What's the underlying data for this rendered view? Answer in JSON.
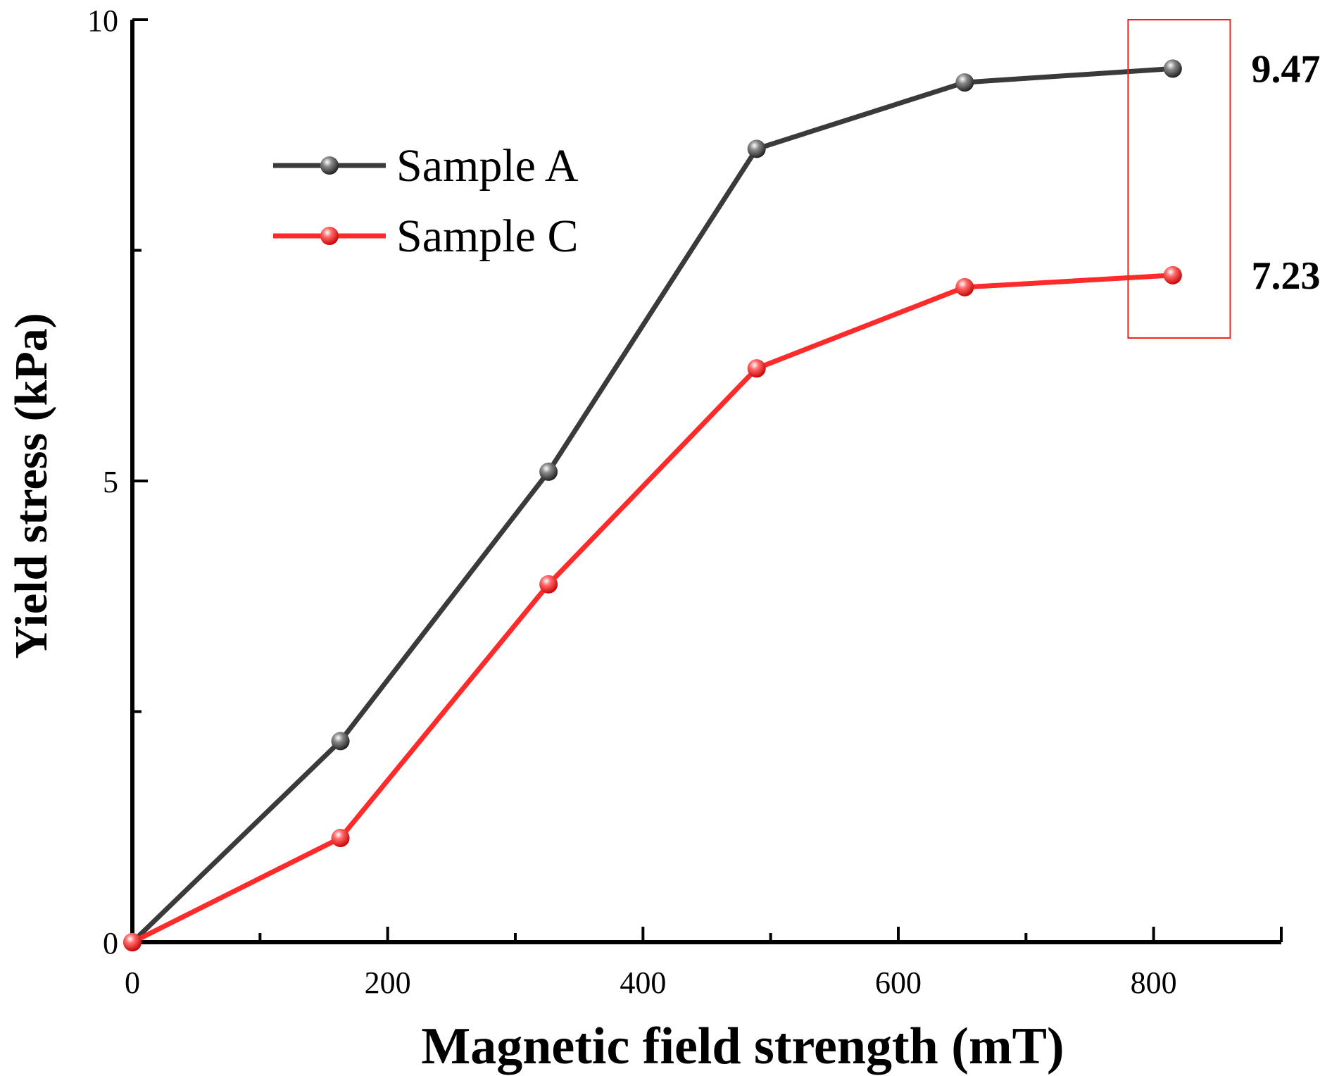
{
  "chart_data": {
    "type": "line",
    "title": "",
    "xlabel": "Magnetic field strength (mT)",
    "ylabel": "Yield stress (kPa)",
    "xlim": [
      0,
      900
    ],
    "ylim": [
      0,
      10
    ],
    "x_major_ticks": [
      0,
      200,
      400,
      600,
      800
    ],
    "x_tick_labels": [
      "0",
      "200",
      "400",
      "600",
      "800"
    ],
    "x_minor_ticks": [
      100,
      300,
      500,
      700
    ],
    "y_major_ticks": [
      0,
      5,
      10
    ],
    "y_tick_labels": [
      "0",
      "5",
      "10"
    ],
    "y_minor_ticks": [
      2.5,
      7.5
    ],
    "grid": false,
    "legend_position": "upper-left",
    "series": [
      {
        "name": "Sample A",
        "color": "#3a3a3a",
        "x": [
          0,
          163,
          326,
          489,
          652,
          815
        ],
        "values": [
          0,
          2.18,
          5.1,
          8.6,
          9.32,
          9.47
        ]
      },
      {
        "name": "Sample C",
        "color": "#ff2b2b",
        "x": [
          0,
          163,
          326,
          489,
          652,
          815
        ],
        "values": [
          0,
          1.13,
          3.88,
          6.22,
          7.1,
          7.23
        ]
      }
    ],
    "annotations": [
      {
        "text": "9.47",
        "series": "Sample A",
        "x": 815,
        "y": 9.47
      },
      {
        "text": "7.23",
        "series": "Sample C",
        "x": 815,
        "y": 7.23
      }
    ],
    "highlight_box": {
      "color": "#ee2222",
      "x_range": [
        780,
        860
      ],
      "y_range": [
        6.55,
        10.0
      ]
    }
  }
}
